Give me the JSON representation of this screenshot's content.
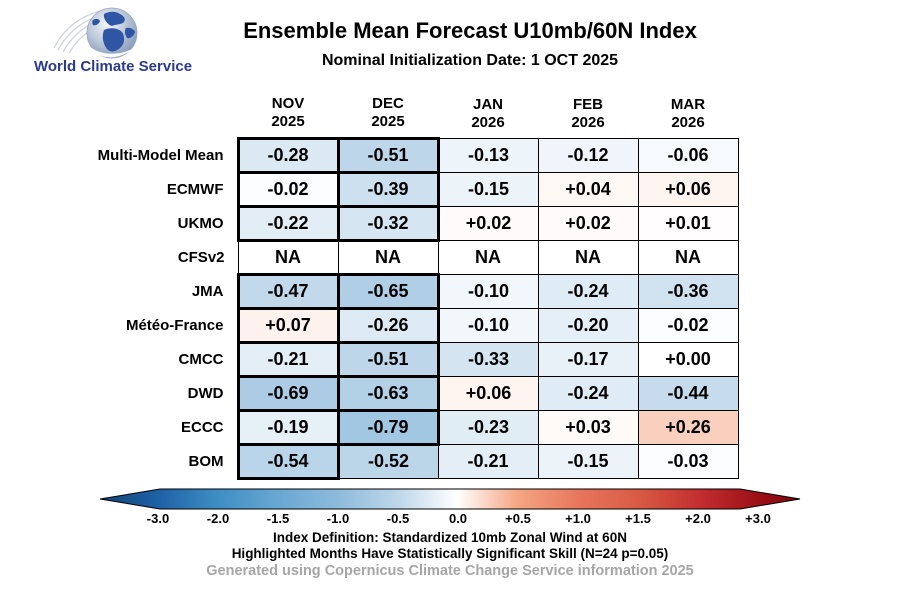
{
  "logo": {
    "brand": "World Climate Service"
  },
  "chart_data": {
    "type": "heatmap",
    "title": "Ensemble Mean Forecast U10mb/60N Index",
    "subtitle": "Nominal Initialization Date: 1 OCT 2025",
    "columns": [
      {
        "month": "NOV",
        "year": "2025"
      },
      {
        "month": "DEC",
        "year": "2025"
      },
      {
        "month": "JAN",
        "year": "2026"
      },
      {
        "month": "FEB",
        "year": "2026"
      },
      {
        "month": "MAR",
        "year": "2026"
      }
    ],
    "rows": [
      {
        "model": "Multi-Model Mean",
        "display": [
          "-0.28",
          "-0.51",
          "-0.13",
          "-0.12",
          "-0.06"
        ],
        "values": [
          -0.28,
          -0.51,
          -0.13,
          -0.12,
          -0.06
        ],
        "significant": [
          true,
          true,
          false,
          false,
          false
        ]
      },
      {
        "model": "ECMWF",
        "display": [
          "-0.02",
          "-0.39",
          "-0.15",
          "+0.04",
          "+0.06"
        ],
        "values": [
          -0.02,
          -0.39,
          -0.15,
          0.04,
          0.06
        ],
        "significant": [
          true,
          true,
          false,
          false,
          false
        ]
      },
      {
        "model": "UKMO",
        "display": [
          "-0.22",
          "-0.32",
          "+0.02",
          "+0.02",
          "+0.01"
        ],
        "values": [
          -0.22,
          -0.32,
          0.02,
          0.02,
          0.01
        ],
        "significant": [
          true,
          true,
          false,
          false,
          false
        ]
      },
      {
        "model": "CFSv2",
        "display": [
          "NA",
          "NA",
          "NA",
          "NA",
          "NA"
        ],
        "values": [
          null,
          null,
          null,
          null,
          null
        ],
        "significant": [
          false,
          false,
          false,
          false,
          false
        ]
      },
      {
        "model": "JMA",
        "display": [
          "-0.47",
          "-0.65",
          "-0.10",
          "-0.24",
          "-0.36"
        ],
        "values": [
          -0.47,
          -0.65,
          -0.1,
          -0.24,
          -0.36
        ],
        "significant": [
          true,
          true,
          false,
          false,
          false
        ]
      },
      {
        "model": "Météo-France",
        "display": [
          "+0.07",
          "-0.26",
          "-0.10",
          "-0.20",
          "-0.02"
        ],
        "values": [
          0.07,
          -0.26,
          -0.1,
          -0.2,
          -0.02
        ],
        "significant": [
          true,
          true,
          false,
          false,
          false
        ]
      },
      {
        "model": "CMCC",
        "display": [
          "-0.21",
          "-0.51",
          "-0.33",
          "-0.17",
          "+0.00"
        ],
        "values": [
          -0.21,
          -0.51,
          -0.33,
          -0.17,
          0.0
        ],
        "significant": [
          true,
          true,
          false,
          false,
          false
        ]
      },
      {
        "model": "DWD",
        "display": [
          "-0.69",
          "-0.63",
          "+0.06",
          "-0.24",
          "-0.44"
        ],
        "values": [
          -0.69,
          -0.63,
          0.06,
          -0.24,
          -0.44
        ],
        "significant": [
          true,
          true,
          false,
          false,
          false
        ]
      },
      {
        "model": "ECCC",
        "display": [
          "-0.19",
          "-0.79",
          "-0.23",
          "+0.03",
          "+0.26"
        ],
        "values": [
          -0.19,
          -0.79,
          -0.23,
          0.03,
          0.26
        ],
        "significant": [
          true,
          true,
          false,
          false,
          false
        ]
      },
      {
        "model": "BOM",
        "display": [
          "-0.54",
          "-0.52",
          "-0.21",
          "-0.15",
          "-0.03"
        ],
        "values": [
          -0.54,
          -0.52,
          -0.21,
          -0.15,
          -0.03
        ],
        "significant": [
          true,
          false,
          false,
          false,
          false
        ]
      }
    ],
    "colormap_stops": [
      [
        -1.0,
        "#8ebbdc"
      ],
      [
        -0.5,
        "#bed7ea"
      ],
      [
        0.0,
        "#ffffff"
      ],
      [
        0.5,
        "#f4a582"
      ],
      [
        1.0,
        "#e8765c"
      ]
    ],
    "colorbar": {
      "range": [
        -3.0,
        3.0
      ],
      "tick_labels": [
        "-3.0",
        "-2.0",
        "-1.5",
        "-1.0",
        "-0.5",
        "0.0",
        "+0.5",
        "+1.0",
        "+1.5",
        "+2.0",
        "+3.0"
      ],
      "gradient": [
        {
          "o": 0.0,
          "c": "#10457a"
        },
        {
          "o": 0.083,
          "c": "#1e61a5"
        },
        {
          "o": 0.169,
          "c": "#3e8ec4"
        },
        {
          "o": 0.254,
          "c": "#68a7d3"
        },
        {
          "o": 0.34,
          "c": "#8ebbdc"
        },
        {
          "o": 0.426,
          "c": "#bed7ea"
        },
        {
          "o": 0.511,
          "c": "#ffffff"
        },
        {
          "o": 0.597,
          "c": "#f4a582"
        },
        {
          "o": 0.683,
          "c": "#e8765c"
        },
        {
          "o": 0.769,
          "c": "#d85b43"
        },
        {
          "o": 0.854,
          "c": "#c42f30"
        },
        {
          "o": 0.94,
          "c": "#9c1016"
        },
        {
          "o": 1.0,
          "c": "#7c050b"
        }
      ]
    },
    "na_color": "#ffffff",
    "significant_border_color": "#000000"
  },
  "footer": {
    "index_definition": "Index Definition: Standardized 10mb Zonal Wind at 60N",
    "significance_note": "Highlighted Months Have Statistically Significant Skill (N=24 p=0.05)",
    "attribution": "Generated using Copernicus Climate Change Service information 2025"
  }
}
